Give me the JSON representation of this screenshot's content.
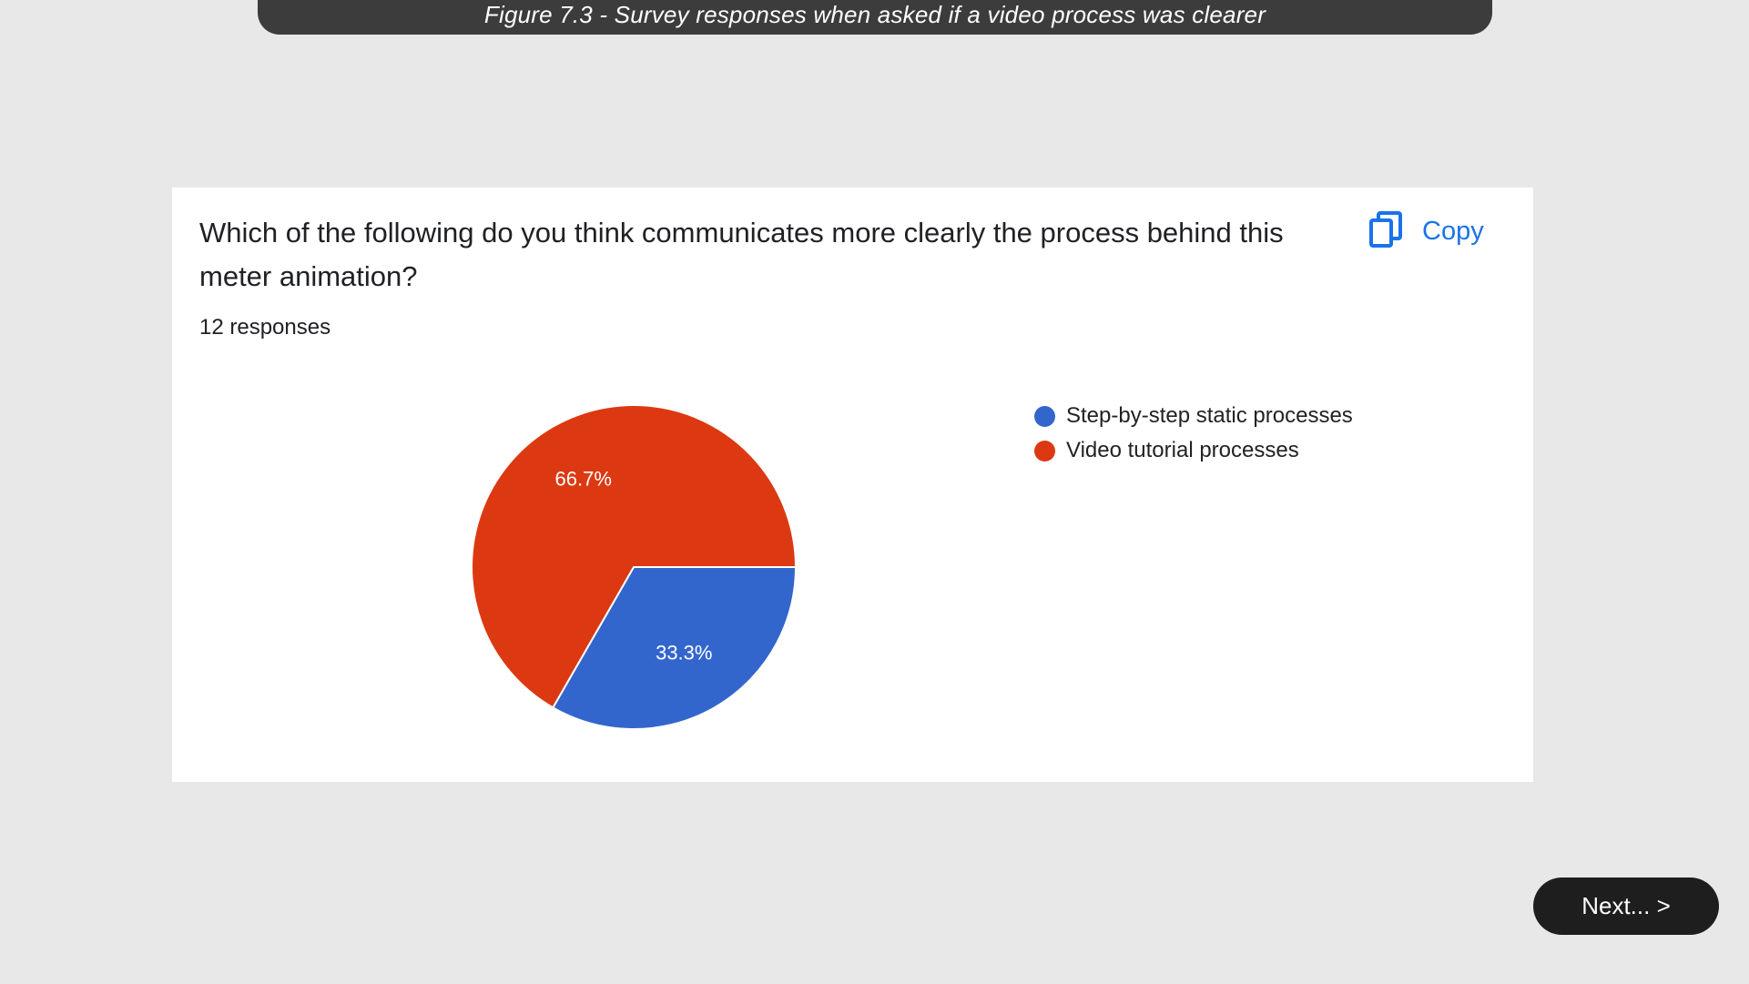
{
  "caption": "Figure 7.3 - Survey responses when asked if a video process was clearer",
  "card": {
    "question": "Which of the following do you think communicates more clearly the process behind this meter animation?",
    "responses": "12 responses",
    "copy_label": "Copy",
    "copy_icon": "copy-icon"
  },
  "chart_data": {
    "type": "pie",
    "categories": [
      "Step-by-step static processes",
      "Video tutorial processes"
    ],
    "values": [
      33.3,
      66.7
    ],
    "labels": [
      "33.3%",
      "66.7%"
    ],
    "colors": [
      "#3366cc",
      "#dc3912"
    ],
    "legend_position": "right"
  },
  "next_label": "Next... >"
}
